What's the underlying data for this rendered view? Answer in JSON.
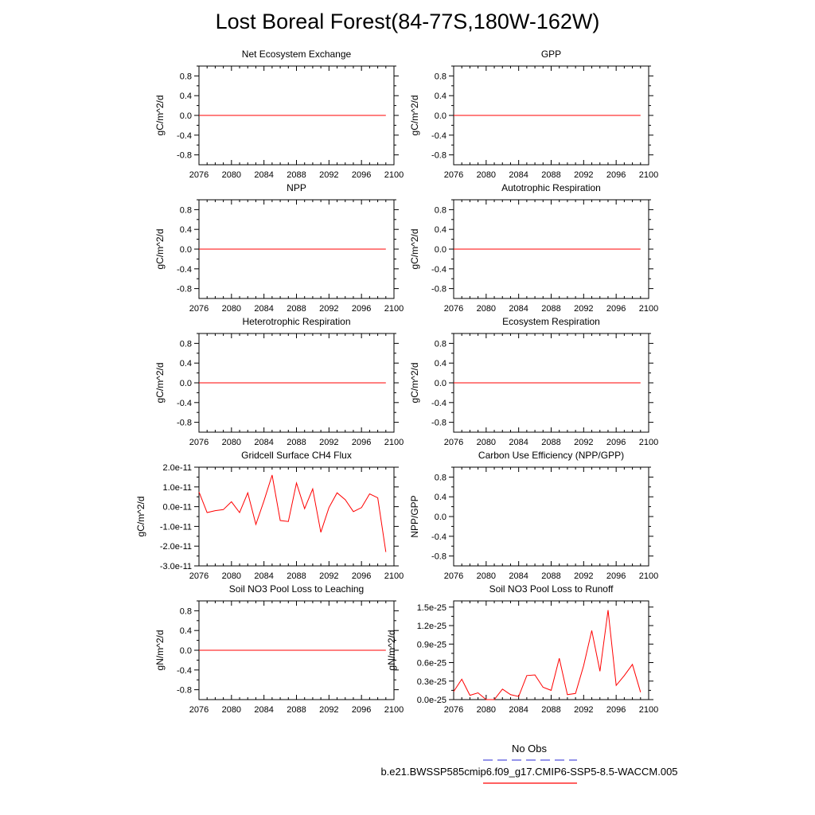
{
  "title": "Lost Boreal Forest(84-77S,180W-162W)",
  "legend": {
    "obs_label": "No Obs",
    "obs_color": "#5555dd",
    "model_label": "b.e21.BWSSP585cmip6.f09_g17.CMIP6-SSP5-8.5-WACCM.005",
    "model_color": "#ff0000"
  },
  "line_color": "#ff0000",
  "chart_data": [
    {
      "type": "line",
      "title": "Net Ecosystem Exchange",
      "ylabel": "gC/m^2/d",
      "xlim": [
        2076,
        2100
      ],
      "ylim": [
        -1,
        1
      ],
      "xticks": [
        "2076",
        "2080",
        "2084",
        "2088",
        "2092",
        "2096",
        "2100"
      ],
      "yticks": [
        "0.8",
        "0.4",
        "0.0",
        "-0.4",
        "-0.8"
      ],
      "x": [
        2076,
        2099
      ],
      "y": [
        0.0,
        0.0
      ]
    },
    {
      "type": "line",
      "title": "GPP",
      "ylabel": "gC/m^2/d",
      "xlim": [
        2076,
        2100
      ],
      "ylim": [
        -1,
        1
      ],
      "xticks": [
        "2076",
        "2080",
        "2084",
        "2088",
        "2092",
        "2096",
        "2100"
      ],
      "yticks": [
        "0.8",
        "0.4",
        "0.0",
        "-0.4",
        "-0.8"
      ],
      "x": [
        2076,
        2099
      ],
      "y": [
        0.0,
        0.0
      ]
    },
    {
      "type": "line",
      "title": "NPP",
      "ylabel": "gC/m^2/d",
      "xlim": [
        2076,
        2100
      ],
      "ylim": [
        -1,
        1
      ],
      "xticks": [
        "2076",
        "2080",
        "2084",
        "2088",
        "2092",
        "2096",
        "2100"
      ],
      "yticks": [
        "0.8",
        "0.4",
        "0.0",
        "-0.4",
        "-0.8"
      ],
      "x": [
        2076,
        2099
      ],
      "y": [
        0.0,
        0.0
      ]
    },
    {
      "type": "line",
      "title": "Autotrophic Respiration",
      "ylabel": "gC/m^2/d",
      "xlim": [
        2076,
        2100
      ],
      "ylim": [
        -1,
        1
      ],
      "xticks": [
        "2076",
        "2080",
        "2084",
        "2088",
        "2092",
        "2096",
        "2100"
      ],
      "yticks": [
        "0.8",
        "0.4",
        "0.0",
        "-0.4",
        "-0.8"
      ],
      "x": [
        2076,
        2099
      ],
      "y": [
        0.0,
        0.0
      ]
    },
    {
      "type": "line",
      "title": "Heterotrophic Respiration",
      "ylabel": "gC/m^2/d",
      "xlim": [
        2076,
        2100
      ],
      "ylim": [
        -1,
        1
      ],
      "xticks": [
        "2076",
        "2080",
        "2084",
        "2088",
        "2092",
        "2096",
        "2100"
      ],
      "yticks": [
        "0.8",
        "0.4",
        "0.0",
        "-0.4",
        "-0.8"
      ],
      "x": [
        2076,
        2099
      ],
      "y": [
        0.0,
        0.0
      ]
    },
    {
      "type": "line",
      "title": "Ecosystem Respiration",
      "ylabel": "gC/m^2/d",
      "xlim": [
        2076,
        2100
      ],
      "ylim": [
        -1,
        1
      ],
      "xticks": [
        "2076",
        "2080",
        "2084",
        "2088",
        "2092",
        "2096",
        "2100"
      ],
      "yticks": [
        "0.8",
        "0.4",
        "0.0",
        "-0.4",
        "-0.8"
      ],
      "x": [
        2076,
        2099
      ],
      "y": [
        0.0,
        0.0
      ]
    },
    {
      "type": "line",
      "title": "Gridcell Surface CH4 Flux",
      "ylabel": "gC/m^2/d",
      "xlim": [
        2076,
        2100
      ],
      "ylim": [
        -3e-11,
        2e-11
      ],
      "xticks": [
        "2076",
        "2080",
        "2084",
        "2088",
        "2092",
        "2096",
        "2100"
      ],
      "yticks": [
        "2.0e-11",
        "1.0e-11",
        "0.0e-11",
        "-1.0e-11",
        "-2.0e-11",
        "-3.0e-11"
      ],
      "x": [
        2076,
        2077,
        2078,
        2079,
        2080,
        2081,
        2082,
        2083,
        2084,
        2085,
        2086,
        2087,
        2088,
        2089,
        2090,
        2091,
        2092,
        2093,
        2094,
        2095,
        2096,
        2097,
        2098,
        2099
      ],
      "y": [
        7.5e-12,
        -3e-12,
        -2e-12,
        -1.5e-12,
        2.5e-12,
        -3e-12,
        7e-12,
        -9e-12,
        3e-12,
        1.6e-11,
        -7e-12,
        -7.5e-12,
        1.2e-11,
        -1e-12,
        9e-12,
        -1.3e-11,
        -5e-13,
        7e-12,
        3.5e-12,
        -2.5e-12,
        -5e-13,
        6.5e-12,
        4.5e-12,
        -2.3e-11
      ]
    },
    {
      "type": "line",
      "title": "Carbon Use Efficiency (NPP/GPP)",
      "ylabel": "NPP/GPP",
      "xlim": [
        2076,
        2100
      ],
      "ylim": [
        -1,
        1
      ],
      "xticks": [
        "2076",
        "2080",
        "2084",
        "2088",
        "2092",
        "2096",
        "2100"
      ],
      "yticks": [
        "0.8",
        "0.4",
        "0.0",
        "-0.4",
        "-0.8"
      ],
      "x": [],
      "y": []
    },
    {
      "type": "line",
      "title": "Soil NO3 Pool Loss to Leaching",
      "ylabel": "gN/m^2/d",
      "xlim": [
        2076,
        2100
      ],
      "ylim": [
        -1,
        1
      ],
      "xticks": [
        "2076",
        "2080",
        "2084",
        "2088",
        "2092",
        "2096",
        "2100"
      ],
      "yticks": [
        "0.8",
        "0.4",
        "0.0",
        "-0.4",
        "-0.8"
      ],
      "x": [
        2076,
        2099
      ],
      "y": [
        0.0,
        0.0
      ]
    },
    {
      "type": "line",
      "title": "Soil NO3 Pool Loss to Runoff",
      "ylabel": "gN/m^2/d",
      "xlim": [
        2076,
        2100
      ],
      "ylim": [
        0,
        1.6e-25
      ],
      "xticks": [
        "2076",
        "2080",
        "2084",
        "2088",
        "2092",
        "2096",
        "2100"
      ],
      "yticks": [
        "1.5e-25",
        "1.2e-25",
        "0.9e-25",
        "0.6e-25",
        "0.3e-25",
        "0.0e-25"
      ],
      "ytick_values": [
        1.5e-25,
        1.2e-25,
        9e-26,
        6e-26,
        3e-26,
        0.0
      ],
      "x": [
        2076,
        2077,
        2078,
        2079,
        2080,
        2081,
        2082,
        2083,
        2084,
        2085,
        2086,
        2087,
        2088,
        2089,
        2090,
        2091,
        2092,
        2093,
        2094,
        2095,
        2096,
        2097,
        2098,
        2099
      ],
      "y": [
        1.3e-26,
        3.3e-26,
        7e-27,
        1.1e-26,
        0.0,
        0.0,
        1.7e-26,
        8e-27,
        5e-27,
        3.9e-26,
        4e-26,
        2e-26,
        1.5e-26,
        6.7e-26,
        8e-27,
        1e-26,
        5.5e-26,
        1.12e-25,
        4.6e-26,
        1.45e-25,
        2.3e-26,
        3.9e-26,
        5.7e-26,
        1.2e-26
      ]
    }
  ]
}
